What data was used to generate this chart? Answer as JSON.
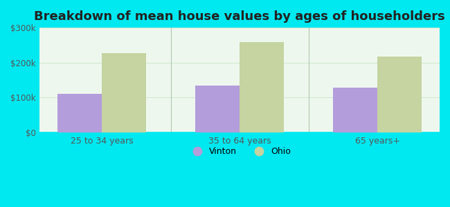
{
  "title": "Breakdown of mean house values by ages of householders",
  "categories": [
    "25 to 34 years",
    "35 to 64 years",
    "65 years+"
  ],
  "vinton_values": [
    110000,
    135000,
    128000
  ],
  "ohio_values": [
    228000,
    258000,
    218000
  ],
  "ylim": [
    0,
    300000
  ],
  "yticks": [
    0,
    100000,
    200000,
    300000
  ],
  "ytick_labels": [
    "$0",
    "$100k",
    "$200k",
    "$300k"
  ],
  "vinton_color": "#b39ddb",
  "ohio_color": "#c5d4a0",
  "title_fontsize": 13,
  "legend_labels": [
    "Vinton",
    "Ohio"
  ],
  "bar_width": 0.32,
  "outer_bg": "#00e8f0",
  "plot_bg": "#e8f5e9",
  "grid_color": "#d0e8d0",
  "divider_color": "#b0c8b0",
  "tick_color": "#555555",
  "title_color": "#222222"
}
